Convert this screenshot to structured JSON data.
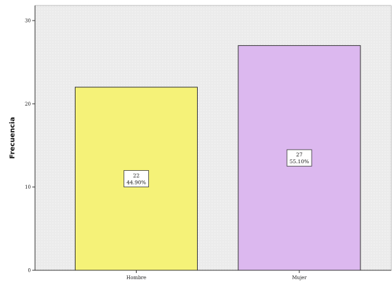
{
  "chart_data": {
    "type": "bar",
    "categories": [
      "Hombre",
      "Mujer"
    ],
    "values": [
      22,
      27
    ],
    "percent_labels": [
      "44.90%",
      "55.10%"
    ],
    "xlabel": "",
    "ylabel": "Frecuencia",
    "ylim": [
      0,
      30
    ],
    "yticks": [
      0,
      10,
      20,
      30
    ],
    "grid": false,
    "legend": "none",
    "colors": {
      "bars": [
        "#f5f278",
        "#dcb8ef"
      ],
      "plot_background": "#ebebeb",
      "bar_stroke": "#333333"
    }
  }
}
